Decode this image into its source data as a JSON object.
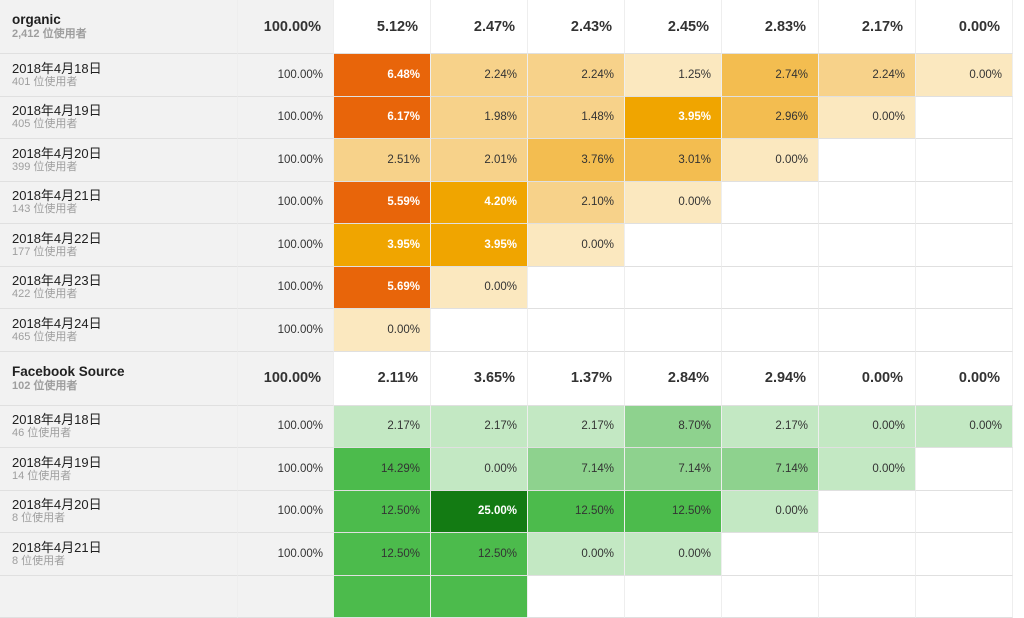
{
  "segments": [
    {
      "name": "organic",
      "users": "2,412 位使用者",
      "summary": [
        "100.00%",
        "5.12%",
        "2.47%",
        "2.43%",
        "2.45%",
        "2.83%",
        "2.17%",
        "0.00%"
      ],
      "rows": [
        {
          "date": "2018年4月18日",
          "users": "401 位使用者",
          "day0": "100.00%",
          "cells": [
            {
              "v": "6.48%",
              "bg": "#e8650a",
              "dark": true
            },
            {
              "v": "2.24%",
              "bg": "#f7d28a"
            },
            {
              "v": "2.24%",
              "bg": "#f7d28a"
            },
            {
              "v": "1.25%",
              "bg": "#fbe8bf"
            },
            {
              "v": "2.74%",
              "bg": "#f3bd50"
            },
            {
              "v": "2.24%",
              "bg": "#f7d28a"
            },
            {
              "v": "0.00%",
              "bg": "#fbe8bf"
            }
          ]
        },
        {
          "date": "2018年4月19日",
          "users": "405 位使用者",
          "day0": "100.00%",
          "cells": [
            {
              "v": "6.17%",
              "bg": "#e8650a",
              "dark": true
            },
            {
              "v": "1.98%",
              "bg": "#f7d28a"
            },
            {
              "v": "1.48%",
              "bg": "#f7d28a"
            },
            {
              "v": "3.95%",
              "bg": "#f0a500",
              "dark": true
            },
            {
              "v": "2.96%",
              "bg": "#f3bd50"
            },
            {
              "v": "0.00%",
              "bg": "#fbe8bf"
            },
            {
              "v": "",
              "bg": "#ffffff"
            }
          ]
        },
        {
          "date": "2018年4月20日",
          "users": "399 位使用者",
          "day0": "100.00%",
          "cells": [
            {
              "v": "2.51%",
              "bg": "#f7d28a"
            },
            {
              "v": "2.01%",
              "bg": "#f7d28a"
            },
            {
              "v": "3.76%",
              "bg": "#f3bd50"
            },
            {
              "v": "3.01%",
              "bg": "#f3bd50"
            },
            {
              "v": "0.00%",
              "bg": "#fbe8bf"
            },
            {
              "v": "",
              "bg": "#ffffff"
            },
            {
              "v": "",
              "bg": "#ffffff"
            }
          ]
        },
        {
          "date": "2018年4月21日",
          "users": "143 位使用者",
          "day0": "100.00%",
          "cells": [
            {
              "v": "5.59%",
              "bg": "#e8650a",
              "dark": true
            },
            {
              "v": "4.20%",
              "bg": "#f0a500",
              "dark": true
            },
            {
              "v": "2.10%",
              "bg": "#f7d28a"
            },
            {
              "v": "0.00%",
              "bg": "#fbe8bf"
            },
            {
              "v": "",
              "bg": "#ffffff"
            },
            {
              "v": "",
              "bg": "#ffffff"
            },
            {
              "v": "",
              "bg": "#ffffff"
            }
          ]
        },
        {
          "date": "2018年4月22日",
          "users": "177 位使用者",
          "day0": "100.00%",
          "cells": [
            {
              "v": "3.95%",
              "bg": "#f0a500",
              "dark": true
            },
            {
              "v": "3.95%",
              "bg": "#f0a500",
              "dark": true
            },
            {
              "v": "0.00%",
              "bg": "#fbe8bf"
            },
            {
              "v": "",
              "bg": "#ffffff"
            },
            {
              "v": "",
              "bg": "#ffffff"
            },
            {
              "v": "",
              "bg": "#ffffff"
            },
            {
              "v": "",
              "bg": "#ffffff"
            }
          ]
        },
        {
          "date": "2018年4月23日",
          "users": "422 位使用者",
          "day0": "100.00%",
          "cells": [
            {
              "v": "5.69%",
              "bg": "#e8650a",
              "dark": true
            },
            {
              "v": "0.00%",
              "bg": "#fbe8bf"
            },
            {
              "v": "",
              "bg": "#ffffff"
            },
            {
              "v": "",
              "bg": "#ffffff"
            },
            {
              "v": "",
              "bg": "#ffffff"
            },
            {
              "v": "",
              "bg": "#ffffff"
            },
            {
              "v": "",
              "bg": "#ffffff"
            }
          ]
        },
        {
          "date": "2018年4月24日",
          "users": "465 位使用者",
          "day0": "100.00%",
          "cells": [
            {
              "v": "0.00%",
              "bg": "#fbe8bf"
            },
            {
              "v": "",
              "bg": "#ffffff"
            },
            {
              "v": "",
              "bg": "#ffffff"
            },
            {
              "v": "",
              "bg": "#ffffff"
            },
            {
              "v": "",
              "bg": "#ffffff"
            },
            {
              "v": "",
              "bg": "#ffffff"
            },
            {
              "v": "",
              "bg": "#ffffff"
            }
          ]
        }
      ]
    },
    {
      "name": "Facebook Source",
      "users": "102 位使用者",
      "summary": [
        "100.00%",
        "2.11%",
        "3.65%",
        "1.37%",
        "2.84%",
        "2.94%",
        "0.00%",
        "0.00%"
      ],
      "rows": [
        {
          "date": "2018年4月18日",
          "users": "46 位使用者",
          "day0": "100.00%",
          "cells": [
            {
              "v": "2.17%",
              "bg": "#c3e8c3"
            },
            {
              "v": "2.17%",
              "bg": "#c3e8c3"
            },
            {
              "v": "2.17%",
              "bg": "#c3e8c3"
            },
            {
              "v": "8.70%",
              "bg": "#8ed28e"
            },
            {
              "v": "2.17%",
              "bg": "#c3e8c3"
            },
            {
              "v": "0.00%",
              "bg": "#c3e8c3"
            },
            {
              "v": "0.00%",
              "bg": "#c3e8c3"
            }
          ]
        },
        {
          "date": "2018年4月19日",
          "users": "14 位使用者",
          "day0": "100.00%",
          "cells": [
            {
              "v": "14.29%",
              "bg": "#4cbb4c"
            },
            {
              "v": "0.00%",
              "bg": "#c3e8c3"
            },
            {
              "v": "7.14%",
              "bg": "#8ed28e"
            },
            {
              "v": "7.14%",
              "bg": "#8ed28e"
            },
            {
              "v": "7.14%",
              "bg": "#8ed28e"
            },
            {
              "v": "0.00%",
              "bg": "#c3e8c3"
            },
            {
              "v": "",
              "bg": "#ffffff"
            }
          ]
        },
        {
          "date": "2018年4月20日",
          "users": "8 位使用者",
          "day0": "100.00%",
          "cells": [
            {
              "v": "12.50%",
              "bg": "#4cbb4c"
            },
            {
              "v": "25.00%",
              "bg": "#137b13",
              "dark": true
            },
            {
              "v": "12.50%",
              "bg": "#4cbb4c"
            },
            {
              "v": "12.50%",
              "bg": "#4cbb4c"
            },
            {
              "v": "0.00%",
              "bg": "#c3e8c3"
            },
            {
              "v": "",
              "bg": "#ffffff"
            },
            {
              "v": "",
              "bg": "#ffffff"
            }
          ]
        },
        {
          "date": "2018年4月21日",
          "users": "8 位使用者",
          "day0": "100.00%",
          "cells": [
            {
              "v": "12.50%",
              "bg": "#4cbb4c"
            },
            {
              "v": "12.50%",
              "bg": "#4cbb4c"
            },
            {
              "v": "0.00%",
              "bg": "#c3e8c3"
            },
            {
              "v": "0.00%",
              "bg": "#c3e8c3"
            },
            {
              "v": "",
              "bg": "#ffffff"
            },
            {
              "v": "",
              "bg": "#ffffff"
            },
            {
              "v": "",
              "bg": "#ffffff"
            }
          ]
        },
        {
          "date": "",
          "users": "",
          "day0": "",
          "cells": [
            {
              "v": "",
              "bg": "#4cbb4c"
            },
            {
              "v": "",
              "bg": "#4cbb4c"
            },
            {
              "v": "",
              "bg": "#ffffff"
            },
            {
              "v": "",
              "bg": "#ffffff"
            },
            {
              "v": "",
              "bg": "#ffffff"
            },
            {
              "v": "",
              "bg": "#ffffff"
            },
            {
              "v": "",
              "bg": "#ffffff"
            }
          ]
        }
      ]
    }
  ]
}
